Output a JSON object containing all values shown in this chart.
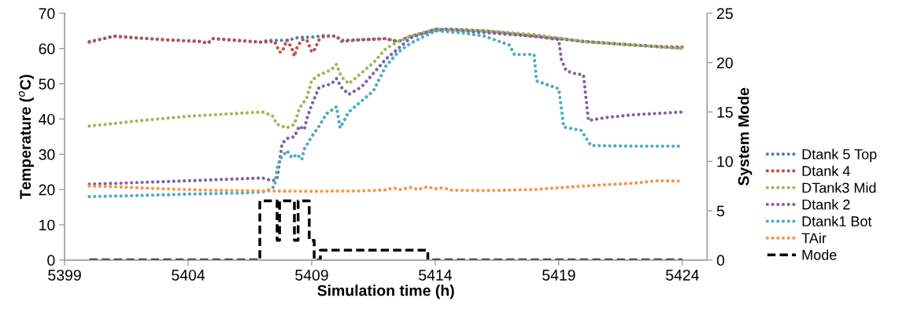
{
  "chart_data": {
    "type": "line",
    "xlabel": "Simulation time (h)",
    "ylabel": "Temperature ($^{o}$C)",
    "y2label": "System Mode",
    "xlim": [
      5399,
      5425
    ],
    "xticks": [
      5399,
      5404,
      5409,
      5414,
      5419,
      5424
    ],
    "ylim": [
      0,
      70
    ],
    "yticks": [
      0,
      10,
      20,
      30,
      40,
      50,
      60,
      70
    ],
    "y2lim": [
      0,
      25
    ],
    "y2ticks": [
      0,
      5,
      10,
      15,
      20,
      25
    ],
    "grid": false,
    "legend": "right",
    "line_style": "dotted",
    "marker": "none",
    "series": [
      {
        "name": "Dtank 5 Top",
        "color": "#4f81bd",
        "x": [
          5400,
          5401,
          5403,
          5404.5,
          5404.8,
          5405,
          5406,
          5407,
          5407.2,
          5408,
          5408.5,
          5409,
          5409.5,
          5410,
          5410.2,
          5411,
          5412,
          5412.5,
          5413,
          5414,
          5414.5,
          5416,
          5417,
          5418,
          5419,
          5420,
          5421,
          5422,
          5423,
          5424
        ],
        "values": [
          62,
          63.5,
          62.5,
          62,
          61.5,
          62.8,
          62.3,
          61.8,
          62.3,
          62.3,
          63.2,
          63.2,
          63.7,
          63.5,
          62.3,
          62.5,
          62.8,
          62,
          63.5,
          65.2,
          65.5,
          65,
          64.3,
          63.5,
          62.8,
          62,
          61.5,
          61,
          60.5,
          60.2
        ]
      },
      {
        "name": "Dtank 4",
        "color": "#c0504d",
        "x": [
          5400,
          5401,
          5403,
          5404.5,
          5404.8,
          5405,
          5406,
          5407,
          5407.5,
          5407.6,
          5407.7,
          5407.8,
          5408,
          5408.2,
          5408.3,
          5408.4,
          5408.6,
          5408.8,
          5409,
          5409.1,
          5409.3,
          5409.5,
          5410,
          5410.2,
          5411,
          5412,
          5412.5,
          5413,
          5414,
          5414.5,
          5416,
          5417,
          5418,
          5419,
          5420,
          5421,
          5422,
          5423,
          5424
        ],
        "values": [
          61.8,
          63.5,
          62.5,
          62,
          61.5,
          62.8,
          62.3,
          61.8,
          62,
          60.5,
          59,
          59,
          62.5,
          60,
          57.8,
          60.2,
          62.5,
          62.5,
          59,
          59.5,
          62.5,
          63.5,
          63.5,
          62,
          62.5,
          62.8,
          62,
          63.5,
          65.2,
          65.5,
          65,
          64.3,
          63.5,
          62.8,
          62,
          61.5,
          61,
          60.6,
          60.4
        ]
      },
      {
        "name": "DTank3 Mid",
        "color": "#9bbb59",
        "x": [
          5400,
          5402,
          5404,
          5406,
          5407,
          5407.4,
          5407.6,
          5408,
          5408.3,
          5408.5,
          5408.8,
          5409,
          5409.3,
          5409.8,
          5410,
          5410.2,
          5410.5,
          5411,
          5411.5,
          5412,
          5412.5,
          5413,
          5414,
          5416,
          5418,
          5419,
          5420,
          5421,
          5422,
          5423,
          5424
        ],
        "values": [
          38,
          39.5,
          40.8,
          41.6,
          42,
          41,
          38.5,
          37.5,
          38.5,
          43,
          46,
          51,
          52.5,
          54,
          55.5,
          52,
          50,
          53,
          56,
          60,
          62,
          63.5,
          65.5,
          65,
          64,
          63,
          62,
          61.5,
          61,
          60.5,
          60
        ]
      },
      {
        "name": "Dtank 2",
        "color": "#8064a2",
        "x": [
          5400,
          5402,
          5404,
          5406,
          5407,
          5407.4,
          5407.6,
          5407.7,
          5407.8,
          5408,
          5408.3,
          5408.5,
          5408.7,
          5408.8,
          5409,
          5409.3,
          5409.8,
          5410,
          5410.2,
          5410.5,
          5411,
          5411.5,
          5412,
          5412.5,
          5413,
          5414,
          5416,
          5418,
          5419,
          5419.1,
          5419.3,
          5419.7,
          5420,
          5420.1,
          5420.2,
          5421,
          5422,
          5424
        ],
        "values": [
          21.5,
          22,
          22.5,
          23,
          23.3,
          22.5,
          23,
          28,
          33,
          34.5,
          35,
          38,
          37,
          40,
          44,
          49,
          50,
          51.5,
          49,
          47,
          49,
          53,
          57,
          60,
          63,
          65.5,
          64.5,
          63.5,
          62.5,
          57,
          53.7,
          52.8,
          52.5,
          46,
          39.6,
          40.5,
          41.2,
          42
        ]
      },
      {
        "name": "Dtank1 Bot",
        "color": "#4bacc6",
        "x": [
          5400,
          5402,
          5404,
          5406,
          5407,
          5407.3,
          5407.5,
          5407.6,
          5407.7,
          5408,
          5408.2,
          5408.4,
          5408.6,
          5408.7,
          5409,
          5409.3,
          5409.6,
          5410,
          5410.15,
          5410.5,
          5411,
          5411.5,
          5412,
          5412.5,
          5413,
          5414,
          5415,
          5416,
          5417,
          5417.2,
          5418,
          5418.1,
          5419,
          5419.2,
          5419.9,
          5420.3,
          5422,
          5424
        ],
        "values": [
          18,
          18.3,
          18.7,
          19,
          19.3,
          20,
          21,
          26,
          28.5,
          31,
          29,
          30,
          28.5,
          31.5,
          35,
          38,
          41.5,
          43.5,
          37.5,
          42,
          45,
          48,
          55,
          59,
          61.5,
          65,
          64.5,
          63.5,
          61,
          58.3,
          58.3,
          50.8,
          48.6,
          37.7,
          36.8,
          32.5,
          32.3,
          32.3
        ]
      },
      {
        "name": "TAir",
        "color": "#f79646",
        "x": [
          5400,
          5401,
          5403,
          5405,
          5407,
          5409,
          5411,
          5412,
          5412.3,
          5412.6,
          5413,
          5413.3,
          5413.7,
          5414,
          5414.3,
          5414.7,
          5416,
          5418,
          5420,
          5422,
          5423,
          5424
        ],
        "values": [
          21,
          20.8,
          20.2,
          19.8,
          19.6,
          19.5,
          19.6,
          19.9,
          20.5,
          20,
          20.6,
          20,
          20.8,
          20.2,
          20.5,
          19.8,
          19.7,
          20,
          21,
          21.8,
          22.5,
          22.4
        ]
      },
      {
        "name": "Mode",
        "color": "#000000",
        "type": "step",
        "axis": "y2",
        "line_style": "dashed",
        "x": [
          5400,
          5406.9,
          5407.6,
          5407.7,
          5408.3,
          5408.45,
          5408.9,
          5409.1,
          5409.35,
          5413.7,
          5424
        ],
        "values": [
          0,
          6,
          2,
          6,
          2,
          6,
          2,
          0,
          1,
          0,
          0
        ]
      }
    ]
  }
}
